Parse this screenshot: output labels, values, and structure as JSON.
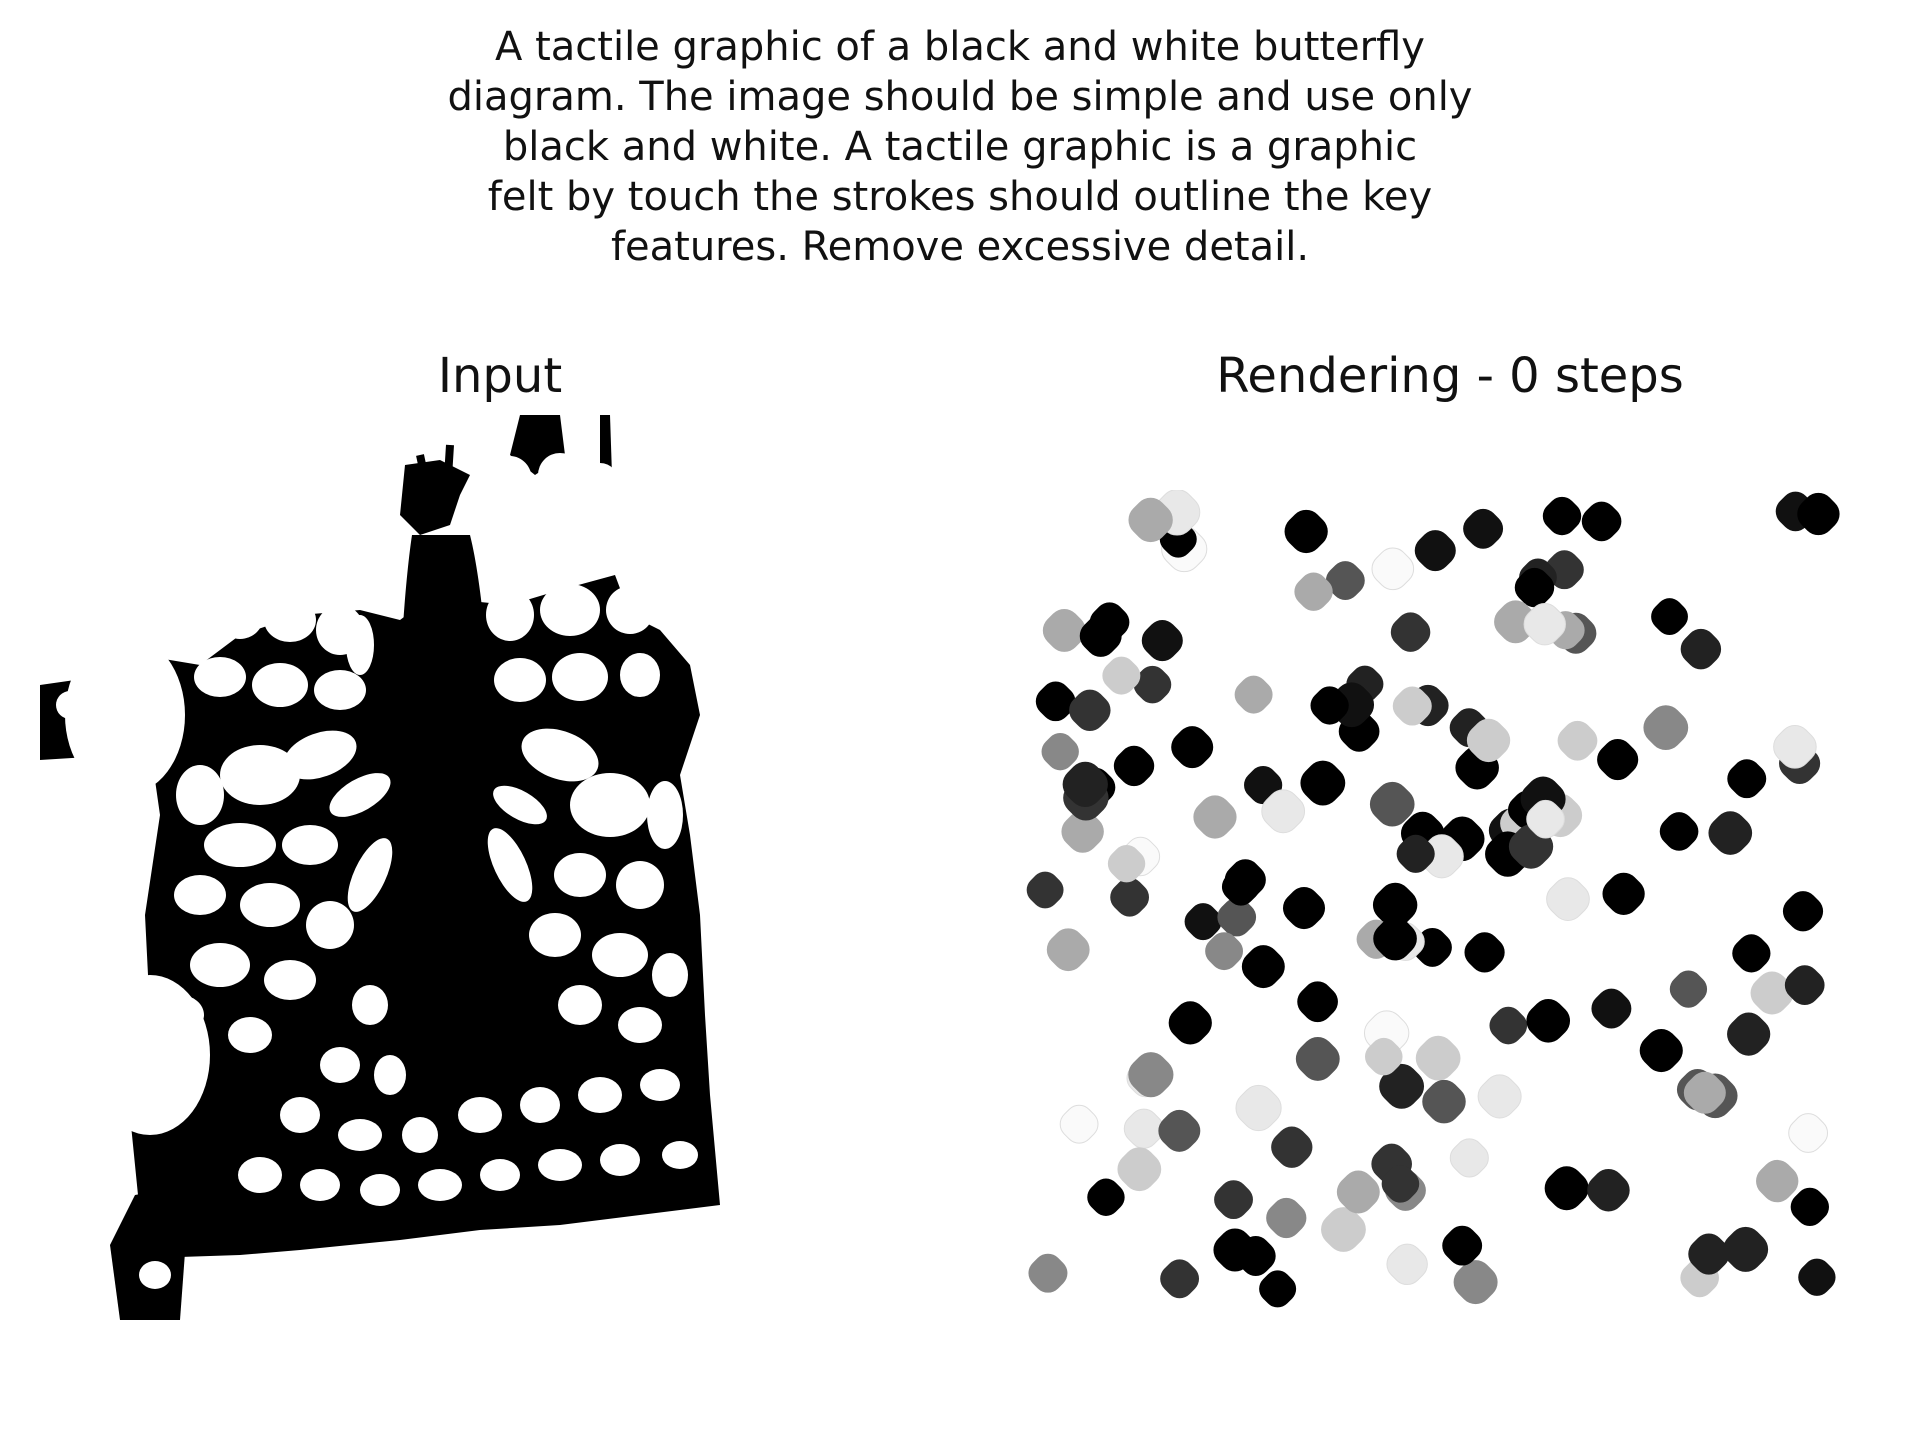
{
  "caption": {
    "lines": [
      "A tactile graphic of a black and white butterfly",
      "diagram. The image should be simple and use only",
      "black and white. A tactile graphic is a graphic",
      "felt by touch the strokes should outline the key",
      "features. Remove excessive detail."
    ]
  },
  "panels": {
    "input_title": "Input",
    "render_title": "Rendering - 0 steps"
  },
  "colors": {
    "background": "#ffffff",
    "ink": "#000000"
  }
}
